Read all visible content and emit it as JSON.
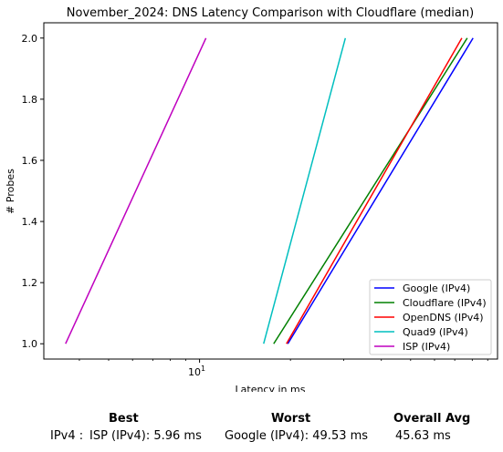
{
  "chart_data": {
    "type": "line",
    "title": "November_2024: DNS Latency Comparison with Cloudflare (median)",
    "xlabel": "Latency in ms",
    "ylabel": "# Probes",
    "xscale": "log",
    "xlim": [
      3.05,
      97
    ],
    "ylim": [
      0.95,
      2.05
    ],
    "x_ticks": [
      {
        "value": 10,
        "base": "10",
        "exp": "1"
      }
    ],
    "y_ticks": [
      "1.0",
      "1.2",
      "1.4",
      "1.6",
      "1.8",
      "2.0"
    ],
    "grid": false,
    "legend_position": "lower-right",
    "series": [
      {
        "name": "Google (IPv4)",
        "color": "#0000ff",
        "x": [
          19.6,
          80.5
        ],
        "y": [
          1.0,
          2.0
        ]
      },
      {
        "name": "Cloudflare (IPv4)",
        "color": "#008000",
        "x": [
          17.6,
          77.0
        ],
        "y": [
          1.0,
          2.0
        ]
      },
      {
        "name": "OpenDNS (IPv4)",
        "color": "#ff0000",
        "x": [
          19.4,
          73.9
        ],
        "y": [
          1.0,
          2.0
        ]
      },
      {
        "name": "Quad9 (IPv4)",
        "color": "#00bfbf",
        "x": [
          16.3,
          30.4
        ],
        "y": [
          1.0,
          2.0
        ]
      },
      {
        "name": "ISP (IPv4)",
        "color": "#bf00bf",
        "x": [
          3.6,
          10.5
        ],
        "y": [
          1.0,
          2.0
        ]
      }
    ]
  },
  "summary": {
    "headers": {
      "best": "Best",
      "worst": "Worst",
      "avg": "Overall Avg"
    },
    "rows": [
      {
        "label": "IPv4 :",
        "best": "ISP (IPv4): 5.96 ms",
        "worst": "Google (IPv4): 49.53 ms",
        "avg": "45.63 ms"
      }
    ]
  }
}
